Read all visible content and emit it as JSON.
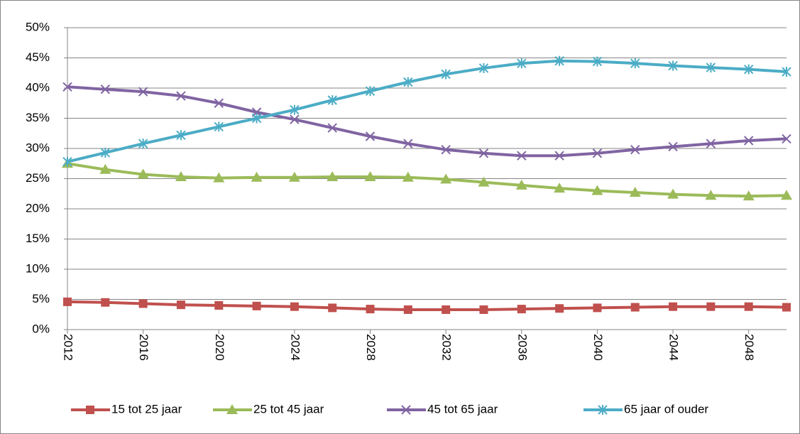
{
  "chart_data": {
    "type": "line",
    "x": [
      2012,
      2014,
      2016,
      2018,
      2020,
      2022,
      2024,
      2026,
      2028,
      2030,
      2032,
      2034,
      2036,
      2038,
      2040,
      2042,
      2044,
      2046,
      2048,
      2050
    ],
    "xlim": [
      2012,
      2050
    ],
    "xticks": [
      2012,
      2016,
      2020,
      2024,
      2028,
      2032,
      2036,
      2040,
      2044,
      2048
    ],
    "ylim": [
      0,
      50
    ],
    "yticks": [
      {
        "value": 0,
        "label": "0%"
      },
      {
        "value": 5,
        "label": "5%"
      },
      {
        "value": 10,
        "label": "10%"
      },
      {
        "value": 15,
        "label": "15%"
      },
      {
        "value": 20,
        "label": "20%"
      },
      {
        "value": 25,
        "label": "25%"
      },
      {
        "value": 30,
        "label": "30%"
      },
      {
        "value": 35,
        "label": "35%"
      },
      {
        "value": 40,
        "label": "40%"
      },
      {
        "value": 45,
        "label": "45%"
      },
      {
        "value": 50,
        "label": "50%"
      }
    ],
    "grid": true,
    "legend": "bottom",
    "series": [
      {
        "name": "15 tot 25 jaar",
        "color": "#c0504d",
        "marker": "square",
        "values": [
          4.6,
          4.5,
          4.3,
          4.1,
          4.0,
          3.9,
          3.8,
          3.6,
          3.4,
          3.3,
          3.3,
          3.3,
          3.4,
          3.5,
          3.6,
          3.7,
          3.8,
          3.8,
          3.8,
          3.7
        ]
      },
      {
        "name": "25 tot 45 jaar",
        "color": "#9bbb59",
        "marker": "triangle",
        "values": [
          27.5,
          26.5,
          25.7,
          25.3,
          25.1,
          25.2,
          25.2,
          25.3,
          25.3,
          25.2,
          24.9,
          24.4,
          23.9,
          23.4,
          23.0,
          22.7,
          22.4,
          22.2,
          22.1,
          22.2
        ]
      },
      {
        "name": "45 tot 65 jaar",
        "color": "#8064a2",
        "marker": "x",
        "values": [
          40.2,
          39.8,
          39.4,
          38.7,
          37.5,
          36.0,
          34.8,
          33.4,
          32.0,
          30.8,
          29.8,
          29.2,
          28.8,
          28.8,
          29.2,
          29.8,
          30.3,
          30.8,
          31.3,
          31.6
        ]
      },
      {
        "name": "65 jaar of ouder",
        "color": "#4bacc6",
        "marker": "star",
        "values": [
          27.8,
          29.3,
          30.8,
          32.2,
          33.6,
          35.0,
          36.4,
          38.0,
          39.5,
          41.0,
          42.3,
          43.3,
          44.1,
          44.5,
          44.4,
          44.1,
          43.7,
          43.4,
          43.1,
          42.7
        ]
      }
    ]
  }
}
